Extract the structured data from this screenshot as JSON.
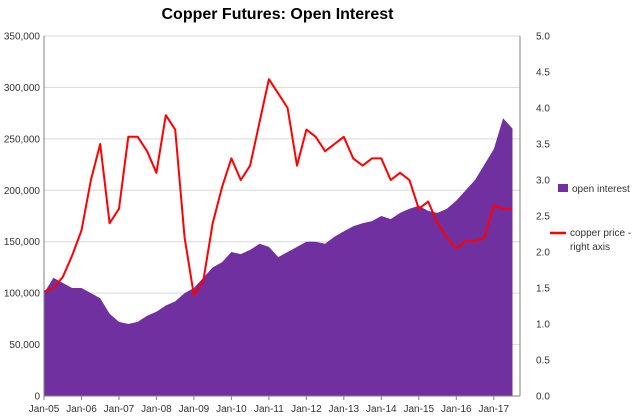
{
  "chart_data": {
    "type": "area",
    "title": "Copper Futures: Open Interest",
    "x_tick_labels": [
      "Jan-05",
      "Jan-06",
      "Jan-07",
      "Jan-08",
      "Jan-09",
      "Jan-10",
      "Jan-11",
      "Jan-12",
      "Jan-13",
      "Jan-14",
      "Jan-15",
      "Jan-16",
      "Jan-17"
    ],
    "y_left": {
      "ylim": [
        0,
        350000
      ],
      "ticks": [
        "0",
        "50,000",
        "100,000",
        "150,000",
        "200,000",
        "250,000",
        "300,000",
        "350,000"
      ]
    },
    "y_right": {
      "ylim": [
        0,
        5.0
      ],
      "ticks": [
        "0.0",
        "0.5",
        "1.0",
        "1.5",
        "2.0",
        "2.5",
        "3.0",
        "3.5",
        "4.0",
        "4.5",
        "5.0"
      ]
    },
    "grid": "horizontal",
    "legend_position": "right",
    "series": [
      {
        "name": "open interest",
        "type": "area",
        "axis": "left",
        "color": "#7030a0",
        "x": [
          2005.0,
          2005.25,
          2005.5,
          2005.75,
          2006.0,
          2006.25,
          2006.5,
          2006.75,
          2007.0,
          2007.25,
          2007.5,
          2007.75,
          2008.0,
          2008.25,
          2008.5,
          2008.75,
          2009.0,
          2009.25,
          2009.5,
          2009.75,
          2010.0,
          2010.25,
          2010.5,
          2010.75,
          2011.0,
          2011.25,
          2011.5,
          2011.75,
          2012.0,
          2012.25,
          2012.5,
          2012.75,
          2013.0,
          2013.25,
          2013.5,
          2013.75,
          2014.0,
          2014.25,
          2014.5,
          2014.75,
          2015.0,
          2015.25,
          2015.5,
          2015.75,
          2016.0,
          2016.25,
          2016.5,
          2016.75,
          2017.0,
          2017.25,
          2017.5
        ],
        "values": [
          100000,
          115000,
          110000,
          105000,
          105000,
          100000,
          95000,
          80000,
          72000,
          70000,
          72000,
          78000,
          82000,
          88000,
          92000,
          100000,
          105000,
          115000,
          125000,
          130000,
          140000,
          138000,
          142000,
          148000,
          145000,
          135000,
          140000,
          145000,
          150000,
          150000,
          148000,
          155000,
          160000,
          165000,
          168000,
          170000,
          175000,
          172000,
          178000,
          182000,
          185000,
          180000,
          178000,
          182000,
          190000,
          200000,
          210000,
          225000,
          240000,
          270000,
          260000
        ]
      },
      {
        "name": "copper price - right axis",
        "type": "line",
        "axis": "right",
        "color": "#ff0000",
        "x": [
          2005.0,
          2005.25,
          2005.5,
          2005.75,
          2006.0,
          2006.25,
          2006.5,
          2006.75,
          2007.0,
          2007.25,
          2007.5,
          2007.75,
          2008.0,
          2008.25,
          2008.5,
          2008.75,
          2009.0,
          2009.25,
          2009.5,
          2009.75,
          2010.0,
          2010.25,
          2010.5,
          2010.75,
          2011.0,
          2011.25,
          2011.5,
          2011.75,
          2012.0,
          2012.25,
          2012.5,
          2012.75,
          2013.0,
          2013.25,
          2013.5,
          2013.75,
          2014.0,
          2014.25,
          2014.5,
          2014.75,
          2015.0,
          2015.25,
          2015.5,
          2015.75,
          2016.0,
          2016.25,
          2016.5,
          2016.75,
          2017.0,
          2017.25,
          2017.5
        ],
        "values": [
          1.45,
          1.5,
          1.65,
          1.95,
          2.3,
          3.0,
          3.5,
          2.4,
          2.6,
          3.6,
          3.6,
          3.4,
          3.1,
          3.9,
          3.7,
          2.2,
          1.4,
          1.6,
          2.4,
          2.9,
          3.3,
          3.0,
          3.2,
          3.8,
          4.4,
          4.2,
          4.0,
          3.2,
          3.7,
          3.6,
          3.4,
          3.5,
          3.6,
          3.3,
          3.2,
          3.3,
          3.3,
          3.0,
          3.1,
          3.0,
          2.6,
          2.7,
          2.4,
          2.2,
          2.05,
          2.15,
          2.15,
          2.2,
          2.65,
          2.6,
          2.6
        ]
      }
    ]
  }
}
